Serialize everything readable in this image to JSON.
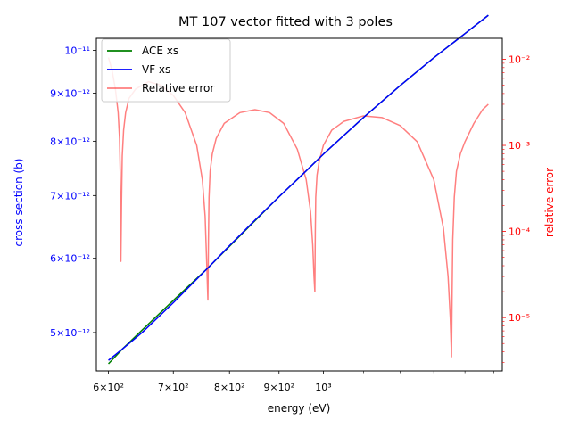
{
  "chart_data": {
    "type": "line",
    "title": "MT 107 vector fitted with 3 poles",
    "xlabel": "energy (eV)",
    "ylabel_left": "cross section (b)",
    "ylabel_right": "relative error",
    "x_scale": "log",
    "y_left_scale": "log",
    "y_right_scale": "log",
    "xlim": [
      583,
      1530
    ],
    "ylim_left": [
      4.55e-12,
      1.03e-11
    ],
    "ylim_right": [
      2.4e-06,
      0.0175
    ],
    "x_major_ticks": [
      {
        "value": 600,
        "label": "6×10²"
      },
      {
        "value": 700,
        "label": "7×10²"
      },
      {
        "value": 800,
        "label": "8×10²"
      },
      {
        "value": 900,
        "label": "9×10²"
      },
      {
        "value": 1000,
        "label": "10³"
      }
    ],
    "y_left_ticks": [
      {
        "value": 5e-12,
        "label": "5×10⁻¹²"
      },
      {
        "value": 6e-12,
        "label": "6×10⁻¹²"
      },
      {
        "value": 7e-12,
        "label": "7×10⁻¹²"
      },
      {
        "value": 8e-12,
        "label": "8×10⁻¹²"
      },
      {
        "value": 9e-12,
        "label": "9×10⁻¹²"
      },
      {
        "value": 1e-11,
        "label": "10⁻¹¹"
      }
    ],
    "y_right_ticks": [
      {
        "value": 1e-05,
        "label": "10⁻⁵"
      },
      {
        "value": 0.0001,
        "label": "10⁻⁴"
      },
      {
        "value": 0.001,
        "label": "10⁻³"
      },
      {
        "value": 0.01,
        "label": "10⁻²"
      }
    ],
    "series": [
      {
        "name": "ACE xs",
        "color": "#008000",
        "axis": "left",
        "x": [
          600,
          620,
          650,
          700,
          760,
          800,
          850,
          900,
          950,
          1000,
          1100,
          1200,
          1300,
          1400,
          1480
        ],
        "y": [
          4.63e-12,
          4.8e-12,
          5.03e-12,
          5.41e-12,
          5.86e-12,
          6.18e-12,
          6.58e-12,
          6.98e-12,
          7.36e-12,
          7.75e-12,
          8.48e-12,
          9.17e-12,
          9.82e-12,
          1.042e-11,
          1.09e-11
        ]
      },
      {
        "name": "VF xs",
        "color": "#0000ff",
        "axis": "left",
        "x": [
          600,
          620,
          650,
          700,
          760,
          800,
          850,
          900,
          950,
          1000,
          1100,
          1200,
          1300,
          1400,
          1480
        ],
        "y": [
          4.67e-12,
          4.8e-12,
          5e-12,
          5.38e-12,
          5.86e-12,
          6.19e-12,
          6.59e-12,
          6.98e-12,
          7.36e-12,
          7.75e-12,
          8.48e-12,
          9.17e-12,
          9.82e-12,
          1.042e-11,
          1.09e-11
        ]
      },
      {
        "name": "Relative error",
        "color": "#ff0000",
        "axis": "right",
        "x": [
          600,
          605,
          610,
          614,
          616,
          617,
          618,
          619,
          620,
          622,
          625,
          630,
          640,
          660,
          680,
          700,
          720,
          740,
          750,
          755,
          758,
          760,
          761,
          762,
          764,
          768,
          775,
          790,
          820,
          850,
          880,
          910,
          940,
          960,
          970,
          975,
          978,
          980,
          981,
          982,
          985,
          990,
          1000,
          1020,
          1050,
          1100,
          1150,
          1200,
          1250,
          1300,
          1330,
          1345,
          1352,
          1356,
          1358,
          1360,
          1365,
          1372,
          1385,
          1400,
          1430,
          1460,
          1480
        ],
        "y": [
          0.0105,
          0.0075,
          0.0045,
          0.0024,
          0.0012,
          0.0005,
          4.5e-05,
          0.00023,
          0.00075,
          0.0015,
          0.0024,
          0.0035,
          0.0045,
          0.0055,
          0.005,
          0.0038,
          0.0024,
          0.001,
          0.0004,
          0.00015,
          4e-05,
          1.6e-05,
          8e-05,
          0.00025,
          0.0005,
          0.0008,
          0.0012,
          0.0018,
          0.0024,
          0.0026,
          0.0024,
          0.0018,
          0.0009,
          0.0004,
          0.00017,
          7e-05,
          3e-05,
          2e-05,
          0.0001,
          0.00025,
          0.00045,
          0.00065,
          0.001,
          0.0015,
          0.0019,
          0.0022,
          0.0021,
          0.0017,
          0.0011,
          0.0004,
          0.00011,
          3e-05,
          1e-05,
          3.5e-06,
          2e-05,
          8e-05,
          0.00025,
          0.0005,
          0.0008,
          0.0011,
          0.0018,
          0.0026,
          0.003
        ]
      }
    ],
    "legend_position": "upper-left",
    "grid": false,
    "colors": {
      "left_axis": "#0000ff",
      "right_axis": "#ff0000"
    }
  }
}
